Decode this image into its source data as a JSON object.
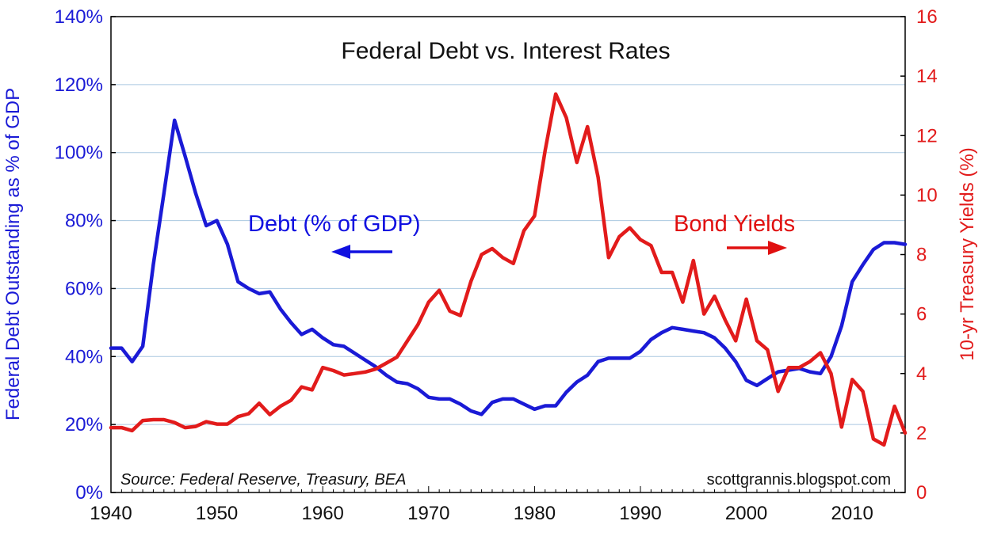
{
  "chart_data": {
    "type": "line",
    "title": "Federal Debt vs. Interest Rates",
    "xlabel": "",
    "ylabel_left": "Federal Debt Outstanding as % of GDP",
    "ylabel_right": "10-yr Treasury Yields (%)",
    "xlim": [
      1940,
      2015
    ],
    "ylim_left": [
      0,
      140
    ],
    "ylim_right": [
      0,
      16
    ],
    "x_ticks": [
      1940,
      1950,
      1960,
      1970,
      1980,
      1990,
      2000,
      2010
    ],
    "x_tick_labels": [
      "1940",
      "1950",
      "1960",
      "1970",
      "1980",
      "1990",
      "2000",
      "2010"
    ],
    "y_left_ticks": [
      0,
      20,
      40,
      60,
      80,
      100,
      120,
      140
    ],
    "y_left_tick_labels": [
      "0%",
      "20%",
      "40%",
      "60%",
      "80%",
      "100%",
      "120%",
      "140%"
    ],
    "y_right_ticks": [
      0,
      2,
      4,
      6,
      8,
      10,
      12,
      14,
      16
    ],
    "y_right_tick_labels": [
      "0",
      "2",
      "4",
      "6",
      "8",
      "10",
      "12",
      "14",
      "16"
    ],
    "grid": "horizontal",
    "annotations": {
      "debt_label": "Debt (% of GDP)",
      "bond_label": "Bond Yields",
      "source": "Source:  Federal Reserve, Treasury, BEA",
      "credit": "scottgrannis.blogspot.com"
    },
    "series": [
      {
        "name": "Debt (% of GDP)",
        "axis": "left",
        "color": "#1a1ad6",
        "x": [
          1940,
          1941,
          1942,
          1943,
          1944,
          1945,
          1946,
          1947,
          1948,
          1949,
          1950,
          1951,
          1952,
          1953,
          1954,
          1955,
          1956,
          1957,
          1958,
          1959,
          1960,
          1961,
          1962,
          1963,
          1964,
          1965,
          1966,
          1967,
          1968,
          1969,
          1970,
          1971,
          1972,
          1973,
          1974,
          1975,
          1976,
          1977,
          1978,
          1979,
          1980,
          1981,
          1982,
          1983,
          1984,
          1985,
          1986,
          1987,
          1988,
          1989,
          1990,
          1991,
          1992,
          1993,
          1994,
          1995,
          1996,
          1997,
          1998,
          1999,
          2000,
          2001,
          2002,
          2003,
          2004,
          2005,
          2006,
          2007,
          2008,
          2009,
          2010,
          2011,
          2012,
          2013,
          2014,
          2015
        ],
        "values": [
          42.5,
          42.5,
          38.5,
          43,
          67,
          88,
          109.5,
          99,
          88,
          78.5,
          80,
          73,
          62,
          60,
          58.5,
          59,
          54,
          50,
          46.5,
          48,
          45.5,
          43.5,
          43,
          41,
          39,
          37,
          34.5,
          32.5,
          32,
          30.5,
          28,
          27.5,
          27.5,
          26,
          24,
          23,
          26.5,
          27.5,
          27.5,
          26,
          24.5,
          25.5,
          25.5,
          29.5,
          32.5,
          34.5,
          38.5,
          39.5,
          39.5,
          39.5,
          41.5,
          45,
          47,
          48.5,
          48,
          47.5,
          47,
          45.5,
          42.5,
          38.5,
          33,
          31.5,
          33.5,
          35.5,
          36,
          36.5,
          35.5,
          35,
          40,
          49,
          62,
          67,
          71.5,
          73.5,
          73.5,
          73
        ]
      },
      {
        "name": "Bond Yields",
        "axis": "right",
        "color": "#e21b1b",
        "x": [
          1940,
          1941,
          1942,
          1943,
          1944,
          1945,
          1946,
          1947,
          1948,
          1949,
          1950,
          1951,
          1952,
          1953,
          1954,
          1955,
          1956,
          1957,
          1958,
          1959,
          1960,
          1961,
          1962,
          1963,
          1964,
          1965,
          1966,
          1967,
          1968,
          1969,
          1970,
          1971,
          1972,
          1973,
          1974,
          1975,
          1976,
          1977,
          1978,
          1979,
          1980,
          1981,
          1982,
          1983,
          1984,
          1985,
          1986,
          1987,
          1988,
          1989,
          1990,
          1991,
          1992,
          1993,
          1994,
          1995,
          1996,
          1997,
          1998,
          1999,
          2000,
          2001,
          2002,
          2003,
          2004,
          2005,
          2006,
          2007,
          2008,
          2009,
          2010,
          2011,
          2012,
          2013,
          2014,
          2015
        ],
        "values": [
          2.18,
          2.18,
          2.08,
          2.42,
          2.45,
          2.45,
          2.35,
          2.18,
          2.22,
          2.38,
          2.3,
          2.3,
          2.55,
          2.65,
          3.0,
          2.62,
          2.9,
          3.1,
          3.55,
          3.45,
          4.2,
          4.1,
          3.95,
          4.0,
          4.05,
          4.15,
          4.35,
          4.55,
          5.1,
          5.65,
          6.4,
          6.8,
          6.1,
          5.95,
          7.1,
          8.0,
          8.2,
          7.9,
          7.7,
          8.8,
          9.3,
          11.5,
          13.4,
          12.6,
          11.1,
          12.3,
          10.6,
          7.9,
          8.6,
          8.9,
          8.5,
          8.3,
          7.4,
          7.4,
          6.4,
          7.8,
          6.0,
          6.6,
          5.8,
          5.1,
          6.5,
          5.1,
          4.8,
          3.4,
          4.2,
          4.2,
          4.4,
          4.7,
          4.0,
          2.2,
          3.8,
          3.4,
          1.8,
          1.6,
          2.9,
          2.0
        ]
      }
    ]
  },
  "colors": {
    "debt": "#1a1ad6",
    "bond": "#e21b1b",
    "grid": "#aac8e0",
    "frame": "#000000"
  }
}
